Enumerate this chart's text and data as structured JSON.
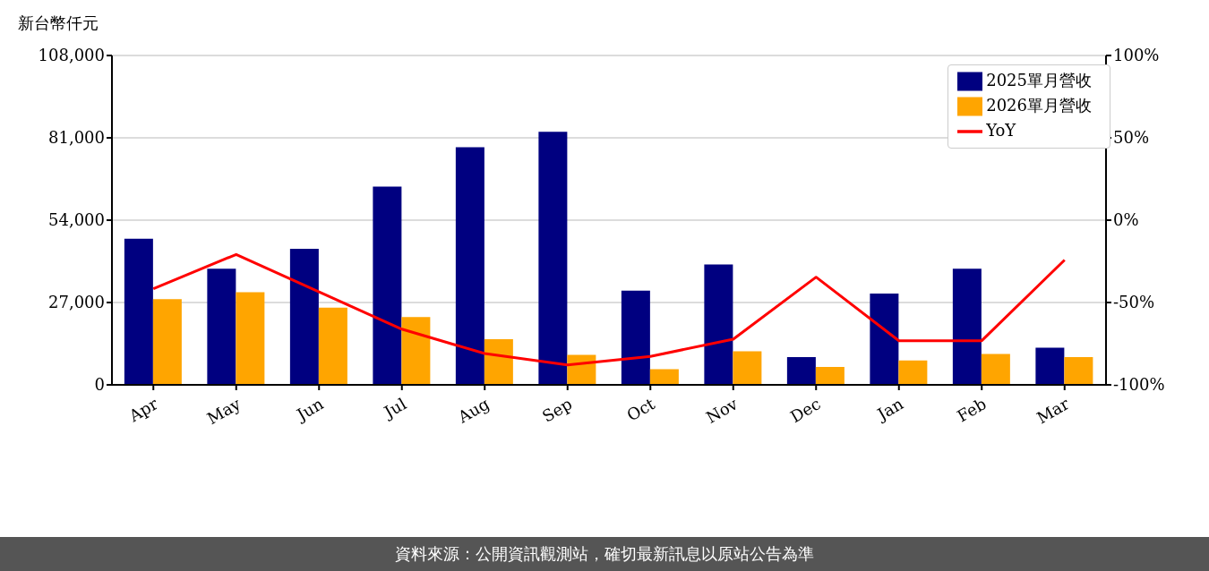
{
  "chart_data": {
    "type": "bar",
    "ylabel": "新台幣仟元",
    "categories": [
      "Apr",
      "May",
      "Jun",
      "Jul",
      "Aug",
      "Sep",
      "Oct",
      "Nov",
      "Dec",
      "Jan",
      "Feb",
      "Mar"
    ],
    "series": [
      {
        "name": "2025單月營收",
        "color": "#000080",
        "values": [
          47900,
          38100,
          44600,
          65000,
          77900,
          83000,
          30900,
          39500,
          9100,
          29900,
          38100,
          12200
        ]
      },
      {
        "name": "2026單月營收",
        "color": "#ffa500",
        "values": [
          28100,
          30400,
          25300,
          22200,
          15000,
          9800,
          5100,
          11000,
          5900,
          8000,
          10100,
          9100
        ]
      },
      {
        "name": "YoY",
        "type": "line",
        "axis": "y2",
        "color": "#ff0000",
        "values": [
          -41.6,
          -20.8,
          -43.5,
          -66.2,
          -81,
          -87.9,
          -82.7,
          -72.3,
          -34.6,
          -73.2,
          -73.2,
          -24.2
        ]
      }
    ],
    "ylim": [
      0,
      108000
    ],
    "yticks": [
      {
        "value": 0,
        "label": "0"
      },
      {
        "value": 27000,
        "label": "27,000"
      },
      {
        "value": 54000,
        "label": "54,000"
      },
      {
        "value": 81000,
        "label": "81,000"
      },
      {
        "value": 108000,
        "label": "108,000"
      }
    ],
    "y2lim": [
      -100,
      100
    ],
    "y2ticks": [
      {
        "value": -100,
        "label": "-100%"
      },
      {
        "value": -50,
        "label": "-50%"
      },
      {
        "value": 0,
        "label": "0%"
      },
      {
        "value": 50,
        "label": "50%"
      },
      {
        "value": 100,
        "label": "100%"
      }
    ],
    "grid": "y",
    "legend": "top right",
    "annotations": [
      "資料來源：公開資訊觀測站，確切最新訊息以原站公告為準"
    ]
  }
}
